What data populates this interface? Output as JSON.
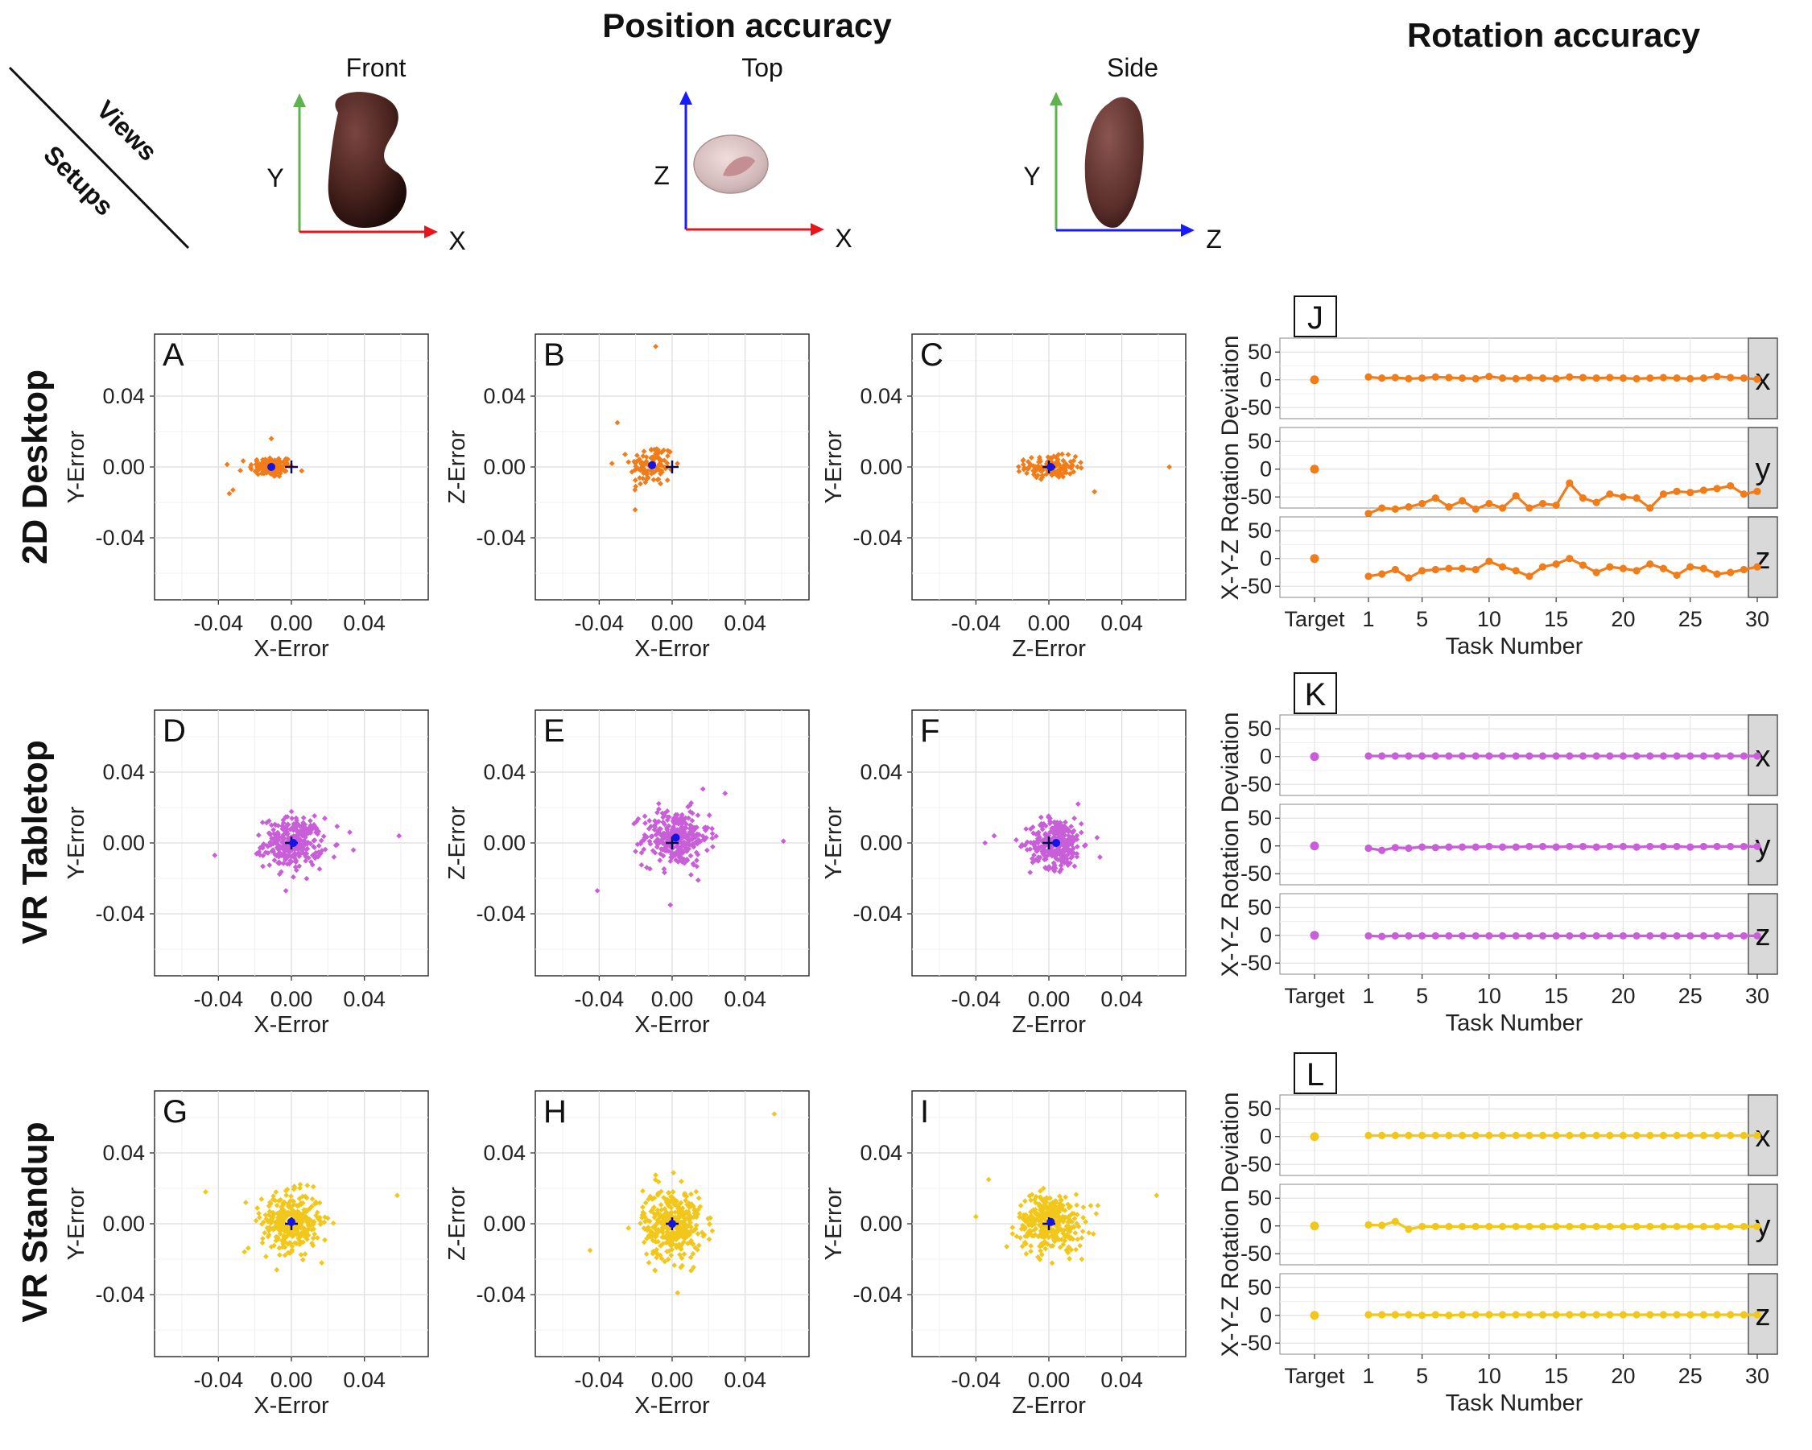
{
  "header": {
    "position_title": "Position accuracy",
    "rotation_title": "Rotation accuracy",
    "diag_top": "Views",
    "diag_bottom": "Setups"
  },
  "views": [
    {
      "label": "Front",
      "h_axis": "X",
      "v_axis": "Y",
      "h_color": "#e8161b",
      "v_color": "#5fb24e"
    },
    {
      "label": "Top",
      "h_axis": "X",
      "v_axis": "Z",
      "h_color": "#e8161b",
      "v_color": "#1a1aff"
    },
    {
      "label": "Side",
      "h_axis": "Z",
      "v_axis": "Y",
      "h_color": "#1a1aff",
      "v_color": "#5fb24e"
    }
  ],
  "setups": [
    {
      "label": "2D Desktop",
      "color": "#f07c1a"
    },
    {
      "label": "VR Tabletop",
      "color": "#c85fd8"
    },
    {
      "label": "VR Standup",
      "color": "#f2c71c"
    }
  ],
  "chart_data": [
    {
      "type": "scatter",
      "description": "Position error scatter plots (panels A-I)",
      "xlim": [
        -0.075,
        0.075
      ],
      "ylim": [
        -0.075,
        0.075
      ],
      "ticks": [
        -0.04,
        0.0,
        0.04
      ],
      "tick_labels": [
        "-0.04",
        "0.00",
        "0.04"
      ],
      "panels": [
        {
          "letter": "A",
          "setup": "2D Desktop",
          "xlabel": "X-Error",
          "ylabel": "Y-Error",
          "color": "#f07c1a",
          "mean": [
            -0.011,
            0.0
          ],
          "target": [
            0.0,
            0.0
          ],
          "spread": [
            0.006,
            0.003
          ],
          "count": 110,
          "outliers": [
            [
              -0.032,
              -0.013
            ],
            [
              -0.034,
              -0.015
            ],
            [
              -0.011,
              0.016
            ],
            [
              -0.028,
              -0.002
            ]
          ]
        },
        {
          "letter": "B",
          "setup": "2D Desktop",
          "xlabel": "X-Error",
          "ylabel": "Z-Error",
          "color": "#f07c1a",
          "mean": [
            -0.011,
            0.001
          ],
          "target": [
            0.0,
            0.0
          ],
          "spread": [
            0.006,
            0.006
          ],
          "count": 110,
          "outliers": [
            [
              -0.009,
              0.068
            ],
            [
              -0.03,
              0.025
            ],
            [
              -0.033,
              0.002
            ],
            [
              -0.02,
              -0.011
            ]
          ]
        },
        {
          "letter": "C",
          "setup": "2D Desktop",
          "xlabel": "Z-Error",
          "ylabel": "Y-Error",
          "color": "#f07c1a",
          "mean": [
            0.001,
            0.0
          ],
          "target": [
            0.0,
            0.0
          ],
          "spread": [
            0.007,
            0.003
          ],
          "count": 130,
          "outliers": [
            [
              0.066,
              0.0
            ],
            [
              0.025,
              -0.014
            ],
            [
              -0.014,
              0.004
            ]
          ]
        },
        {
          "letter": "D",
          "setup": "VR Tabletop",
          "xlabel": "X-Error",
          "ylabel": "Y-Error",
          "color": "#c85fd8",
          "mean": [
            0.001,
            0.0
          ],
          "target": [
            0.0,
            0.0
          ],
          "spread": [
            0.008,
            0.007
          ],
          "count": 300,
          "outliers": [
            [
              0.059,
              0.004
            ],
            [
              -0.042,
              -0.007
            ],
            [
              0.034,
              -0.004
            ],
            [
              0.032,
              0.006
            ]
          ]
        },
        {
          "letter": "E",
          "setup": "VR Tabletop",
          "xlabel": "X-Error",
          "ylabel": "Z-Error",
          "color": "#c85fd8",
          "mean": [
            0.002,
            0.003
          ],
          "target": [
            0.0,
            0.0
          ],
          "spread": [
            0.009,
            0.008
          ],
          "count": 300,
          "outliers": [
            [
              -0.041,
              -0.027
            ],
            [
              0.061,
              0.001
            ],
            [
              0.029,
              0.028
            ],
            [
              -0.001,
              -0.035
            ]
          ]
        },
        {
          "letter": "F",
          "setup": "VR Tabletop",
          "xlabel": "Z-Error",
          "ylabel": "Y-Error",
          "color": "#c85fd8",
          "mean": [
            0.004,
            0.0
          ],
          "target": [
            0.0,
            0.0
          ],
          "spread": [
            0.007,
            0.007
          ],
          "count": 300,
          "outliers": [
            [
              -0.035,
              0.0
            ],
            [
              -0.03,
              0.004
            ],
            [
              0.028,
              -0.008
            ],
            [
              0.016,
              0.022
            ]
          ]
        },
        {
          "letter": "G",
          "setup": "VR Standup",
          "xlabel": "X-Error",
          "ylabel": "Y-Error",
          "color": "#f2c71c",
          "mean": [
            0.0,
            0.001
          ],
          "target": [
            0.0,
            0.0
          ],
          "spread": [
            0.008,
            0.008
          ],
          "count": 340,
          "outliers": [
            [
              -0.047,
              0.018
            ],
            [
              0.058,
              0.016
            ],
            [
              -0.025,
              0.012
            ],
            [
              -0.008,
              -0.026
            ]
          ]
        },
        {
          "letter": "H",
          "setup": "VR Standup",
          "xlabel": "X-Error",
          "ylabel": "Z-Error",
          "color": "#f2c71c",
          "mean": [
            0.0,
            0.0
          ],
          "target": [
            0.0,
            0.0
          ],
          "spread": [
            0.008,
            0.01
          ],
          "count": 340,
          "outliers": [
            [
              0.056,
              0.062
            ],
            [
              -0.045,
              -0.015
            ],
            [
              0.003,
              -0.039
            ],
            [
              0.022,
              -0.004
            ]
          ]
        },
        {
          "letter": "I",
          "setup": "VR Standup",
          "xlabel": "Z-Error",
          "ylabel": "Y-Error",
          "color": "#f2c71c",
          "mean": [
            0.001,
            0.001
          ],
          "target": [
            0.0,
            0.0
          ],
          "spread": [
            0.009,
            0.008
          ],
          "count": 340,
          "outliers": [
            [
              0.059,
              0.016
            ],
            [
              -0.033,
              0.025
            ],
            [
              -0.04,
              0.004
            ],
            [
              0.018,
              -0.02
            ]
          ]
        }
      ]
    },
    {
      "type": "line",
      "description": "Rotation deviation per task (panels J-L), facets x/y/z",
      "xlabel": "Task Number",
      "ylabel": "X-Y-Z Rotation Deviation",
      "ylim": [
        -70,
        75
      ],
      "yticks": [
        50,
        0,
        -50
      ],
      "ytick_labels": [
        "50",
        "0",
        "-50"
      ],
      "x_category": "Target",
      "xticks": [
        1,
        5,
        10,
        15,
        20,
        25,
        30
      ],
      "tasks": [
        1,
        2,
        3,
        4,
        5,
        6,
        7,
        8,
        9,
        10,
        11,
        12,
        13,
        14,
        15,
        16,
        17,
        18,
        19,
        20,
        21,
        22,
        23,
        24,
        25,
        26,
        27,
        28,
        29,
        30
      ],
      "panels": [
        {
          "letter": "J",
          "setup": "2D Desktop",
          "color": "#f07c1a",
          "facets": [
            {
              "label": "x",
              "target": 0,
              "values": [
                5,
                3,
                4,
                2,
                3,
                5,
                4,
                3,
                2,
                6,
                3,
                2,
                4,
                3,
                2,
                5,
                4,
                3,
                4,
                3,
                2,
                3,
                4,
                3,
                2,
                3,
                6,
                4,
                3,
                1
              ]
            },
            {
              "label": "y",
              "target": 0,
              "values": [
                -80,
                -70,
                -72,
                -68,
                -62,
                -52,
                -68,
                -57,
                -72,
                -62,
                -70,
                -48,
                -70,
                -62,
                -65,
                -25,
                -52,
                -60,
                -45,
                -50,
                -52,
                -70,
                -45,
                -40,
                -42,
                -38,
                -35,
                -30,
                -45,
                -40
              ]
            },
            {
              "label": "z",
              "target": 0,
              "values": [
                -32,
                -28,
                -20,
                -35,
                -22,
                -20,
                -18,
                -18,
                -20,
                -5,
                -15,
                -22,
                -32,
                -15,
                -10,
                0,
                -12,
                -25,
                -15,
                -18,
                -22,
                -10,
                -18,
                -30,
                -15,
                -18,
                -28,
                -25,
                -20,
                -15
              ]
            }
          ]
        },
        {
          "letter": "K",
          "setup": "VR Tabletop",
          "color": "#c85fd8",
          "facets": [
            {
              "label": "x",
              "target": 0,
              "values": [
                1,
                1,
                1,
                1,
                1,
                1,
                1,
                1,
                1,
                1,
                1,
                1,
                1,
                1,
                1,
                1,
                1,
                1,
                1,
                1,
                1,
                1,
                1,
                1,
                1,
                1,
                1,
                1,
                1,
                1
              ]
            },
            {
              "label": "y",
              "target": 0,
              "values": [
                -4,
                -8,
                -3,
                -4,
                -2,
                -3,
                -2,
                -2,
                -2,
                -1,
                -2,
                -2,
                -1,
                -1,
                -2,
                -1,
                -1,
                -2,
                -1,
                -1,
                -2,
                -1,
                -1,
                -1,
                -2,
                -1,
                -1,
                -1,
                -1,
                -1
              ]
            },
            {
              "label": "z",
              "target": 0,
              "values": [
                -1,
                -2,
                -1,
                -1,
                -1,
                -1,
                -1,
                -1,
                -1,
                -1,
                -1,
                -1,
                -1,
                -1,
                -1,
                -1,
                -1,
                -1,
                -1,
                -1,
                -1,
                -1,
                -1,
                -1,
                -1,
                -1,
                -1,
                -1,
                -1,
                -1
              ]
            }
          ]
        },
        {
          "letter": "L",
          "setup": "VR Standup",
          "color": "#f2c71c",
          "facets": [
            {
              "label": "x",
              "target": 0,
              "values": [
                2,
                2,
                2,
                2,
                2,
                2,
                2,
                2,
                2,
                2,
                2,
                2,
                2,
                2,
                2,
                2,
                2,
                2,
                2,
                2,
                2,
                2,
                2,
                2,
                2,
                2,
                2,
                2,
                2,
                2
              ]
            },
            {
              "label": "y",
              "target": 0,
              "values": [
                2,
                1,
                8,
                -6,
                -1,
                -1,
                -1,
                -1,
                -1,
                -1,
                -1,
                -1,
                -1,
                -1,
                -1,
                -1,
                -1,
                -1,
                -1,
                -1,
                -1,
                -1,
                -1,
                -1,
                -1,
                -1,
                -1,
                -1,
                -1,
                -1
              ]
            },
            {
              "label": "z",
              "target": 0,
              "values": [
                1,
                1,
                1,
                1,
                0,
                1,
                0,
                1,
                1,
                1,
                1,
                1,
                1,
                1,
                1,
                1,
                1,
                1,
                1,
                1,
                1,
                1,
                1,
                1,
                1,
                1,
                1,
                1,
                1,
                1
              ]
            }
          ]
        }
      ]
    }
  ]
}
